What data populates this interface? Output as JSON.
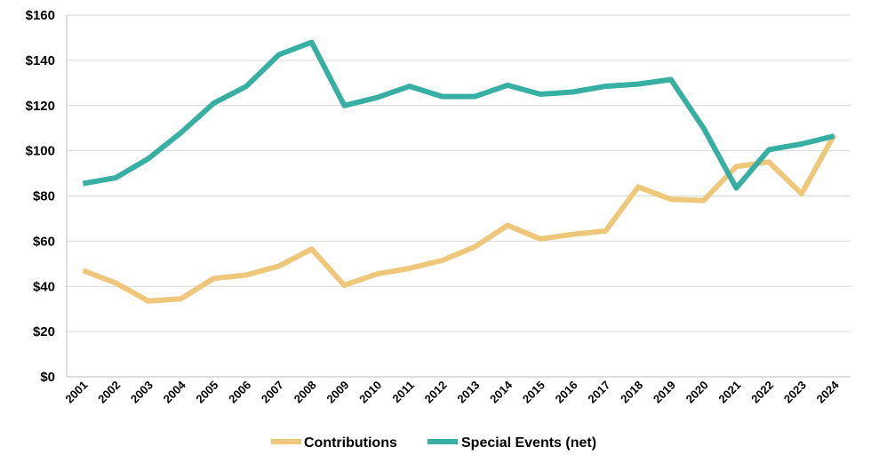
{
  "chart_data": {
    "type": "line",
    "x": [
      "2001",
      "2002",
      "2003",
      "2004",
      "2005",
      "2006",
      "2007",
      "2008",
      "2009",
      "2010",
      "2011",
      "2012",
      "2013",
      "2014",
      "2015",
      "2016",
      "2017",
      "2018",
      "2019",
      "2020",
      "2021",
      "2022",
      "2023",
      "2024"
    ],
    "series": [
      {
        "name": "Contributions",
        "color": "#EEC77A",
        "values": [
          47,
          41.5,
          33.5,
          34.5,
          43.5,
          45,
          49,
          56.5,
          40.5,
          45.5,
          48,
          51.5,
          57.5,
          67,
          61,
          63,
          64.5,
          84,
          78.5,
          78,
          93,
          95,
          81,
          107
        ]
      },
      {
        "name": "Special Events (net)",
        "color": "#38AFA3",
        "values": [
          85.5,
          88,
          96.5,
          108,
          121,
          128.5,
          142.5,
          148,
          120,
          123.5,
          128.5,
          124,
          124,
          129,
          125,
          126,
          128.5,
          129.5,
          131.5,
          110,
          83.5,
          100.5,
          103,
          106.5
        ]
      }
    ],
    "ylim": [
      0,
      160
    ],
    "yticks": [
      0,
      20,
      40,
      60,
      80,
      100,
      120,
      140,
      160
    ],
    "ytick_labels": [
      "$0",
      "$20",
      "$40",
      "$60",
      "$80",
      "$100",
      "$120",
      "$140",
      "$160"
    ],
    "grid": true,
    "legend": "bottom"
  }
}
